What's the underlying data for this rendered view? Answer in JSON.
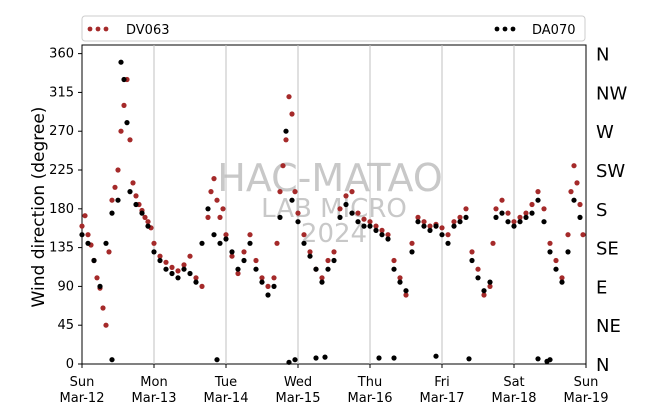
{
  "chart_data": {
    "type": "scatter",
    "ylabel": "Wind direction (degree)",
    "ylim": [
      0,
      370
    ],
    "yticks": [
      0,
      45,
      90,
      135,
      180,
      225,
      270,
      315,
      360
    ],
    "xlim": [
      "2024-03-12T00:00",
      "2024-03-19T00:00"
    ],
    "xtick_labels": [
      {
        "day": "Sun",
        "date": "Mar-12"
      },
      {
        "day": "Mon",
        "date": "Mar-13"
      },
      {
        "day": "Tue",
        "date": "Mar-14"
      },
      {
        "day": "Wed",
        "date": "Mar-15"
      },
      {
        "day": "Thu",
        "date": "Mar-16"
      },
      {
        "day": "Fri",
        "date": "Mar-17"
      },
      {
        "day": "Sat",
        "date": "Mar-18"
      },
      {
        "day": "Sun",
        "date": "Mar-19"
      }
    ],
    "right_axis_labels": [
      "N",
      "NE",
      "E",
      "SE",
      "S",
      "SW",
      "W",
      "NW",
      "N"
    ],
    "grid": "vertical-x",
    "legend": "top",
    "watermark": [
      "HAC-MATAO",
      "LAB MICRO",
      "2024"
    ],
    "series": [
      {
        "name": "DV063",
        "color": "#a52a2a",
        "points": [
          [
            "03-12 00:00",
            160
          ],
          [
            "03-12 01:00",
            172
          ],
          [
            "03-12 02:00",
            150
          ],
          [
            "03-12 03:00",
            138
          ],
          [
            "03-12 04:00",
            120
          ],
          [
            "03-12 05:00",
            100
          ],
          [
            "03-12 06:00",
            88
          ],
          [
            "03-12 07:00",
            65
          ],
          [
            "03-12 08:00",
            45
          ],
          [
            "03-12 09:00",
            130
          ],
          [
            "03-12 10:00",
            190
          ],
          [
            "03-12 11:00",
            205
          ],
          [
            "03-12 12:00",
            225
          ],
          [
            "03-12 13:00",
            270
          ],
          [
            "03-12 14:00",
            300
          ],
          [
            "03-12 15:00",
            330
          ],
          [
            "03-12 16:00",
            260
          ],
          [
            "03-12 17:00",
            210
          ],
          [
            "03-12 18:00",
            195
          ],
          [
            "03-12 19:00",
            185
          ],
          [
            "03-12 20:00",
            178
          ],
          [
            "03-12 21:00",
            170
          ],
          [
            "03-12 22:00",
            165
          ],
          [
            "03-12 23:00",
            158
          ],
          [
            "03-13 00:00",
            140
          ],
          [
            "03-13 02:00",
            125
          ],
          [
            "03-13 04:00",
            118
          ],
          [
            "03-13 06:00",
            112
          ],
          [
            "03-13 08:00",
            108
          ],
          [
            "03-13 10:00",
            115
          ],
          [
            "03-13 12:00",
            125
          ],
          [
            "03-13 14:00",
            100
          ],
          [
            "03-13 16:00",
            90
          ],
          [
            "03-13 18:00",
            170
          ],
          [
            "03-13 19:00",
            200
          ],
          [
            "03-13 20:00",
            215
          ],
          [
            "03-13 21:00",
            190
          ],
          [
            "03-13 22:00",
            170
          ],
          [
            "03-13 23:00",
            180
          ],
          [
            "03-14 00:00",
            150
          ],
          [
            "03-14 02:00",
            125
          ],
          [
            "03-14 04:00",
            105
          ],
          [
            "03-14 06:00",
            130
          ],
          [
            "03-14 08:00",
            150
          ],
          [
            "03-14 10:00",
            120
          ],
          [
            "03-14 12:00",
            100
          ],
          [
            "03-14 14:00",
            90
          ],
          [
            "03-14 16:00",
            100
          ],
          [
            "03-14 17:00",
            140
          ],
          [
            "03-14 18:00",
            200
          ],
          [
            "03-14 19:00",
            230
          ],
          [
            "03-14 20:00",
            260
          ],
          [
            "03-14 21:00",
            310
          ],
          [
            "03-14 22:00",
            290
          ],
          [
            "03-14 23:00",
            200
          ],
          [
            "03-15 00:00",
            175
          ],
          [
            "03-15 02:00",
            150
          ],
          [
            "03-15 04:00",
            130
          ],
          [
            "03-15 06:00",
            110
          ],
          [
            "03-15 08:00",
            100
          ],
          [
            "03-15 10:00",
            120
          ],
          [
            "03-15 12:00",
            130
          ],
          [
            "03-15 14:00",
            180
          ],
          [
            "03-15 16:00",
            195
          ],
          [
            "03-15 18:00",
            200
          ],
          [
            "03-15 20:00",
            175
          ],
          [
            "03-15 22:00",
            168
          ],
          [
            "03-16 00:00",
            165
          ],
          [
            "03-16 02:00",
            160
          ],
          [
            "03-16 04:00",
            155
          ],
          [
            "03-16 06:00",
            150
          ],
          [
            "03-16 08:00",
            120
          ],
          [
            "03-16 10:00",
            100
          ],
          [
            "03-16 12:00",
            80
          ],
          [
            "03-16 14:00",
            140
          ],
          [
            "03-16 16:00",
            170
          ],
          [
            "03-16 18:00",
            165
          ],
          [
            "03-16 20:00",
            160
          ],
          [
            "03-16 22:00",
            162
          ],
          [
            "03-17 00:00",
            158
          ],
          [
            "03-17 02:00",
            150
          ],
          [
            "03-17 04:00",
            165
          ],
          [
            "03-17 06:00",
            170
          ],
          [
            "03-17 08:00",
            180
          ],
          [
            "03-17 10:00",
            130
          ],
          [
            "03-17 12:00",
            110
          ],
          [
            "03-17 14:00",
            80
          ],
          [
            "03-17 16:00",
            90
          ],
          [
            "03-17 17:00",
            140
          ],
          [
            "03-17 18:00",
            180
          ],
          [
            "03-17 20:00",
            190
          ],
          [
            "03-17 22:00",
            175
          ],
          [
            "03-18 00:00",
            165
          ],
          [
            "03-18 02:00",
            170
          ],
          [
            "03-18 04:00",
            175
          ],
          [
            "03-18 06:00",
            185
          ],
          [
            "03-18 08:00",
            200
          ],
          [
            "03-18 10:00",
            180
          ],
          [
            "03-18 12:00",
            140
          ],
          [
            "03-18 14:00",
            120
          ],
          [
            "03-18 16:00",
            100
          ],
          [
            "03-18 18:00",
            150
          ],
          [
            "03-18 19:00",
            200
          ],
          [
            "03-18 20:00",
            230
          ],
          [
            "03-18 21:00",
            210
          ],
          [
            "03-18 22:00",
            185
          ],
          [
            "03-18 23:00",
            150
          ]
        ]
      },
      {
        "name": "DA070",
        "color": "#000000",
        "points": [
          [
            "03-12 00:00",
            150
          ],
          [
            "03-12 02:00",
            140
          ],
          [
            "03-12 04:00",
            120
          ],
          [
            "03-12 06:00",
            90
          ],
          [
            "03-12 08:00",
            140
          ],
          [
            "03-12 10:00",
            175
          ],
          [
            "03-12 12:00",
            190
          ],
          [
            "03-12 13:00",
            350
          ],
          [
            "03-12 14:00",
            330
          ],
          [
            "03-12 15:00",
            280
          ],
          [
            "03-12 16:00",
            200
          ],
          [
            "03-12 18:00",
            185
          ],
          [
            "03-12 20:00",
            175
          ],
          [
            "03-12 22:00",
            160
          ],
          [
            "03-13 00:00",
            130
          ],
          [
            "03-13 02:00",
            120
          ],
          [
            "03-13 04:00",
            110
          ],
          [
            "03-13 06:00",
            105
          ],
          [
            "03-13 08:00",
            100
          ],
          [
            "03-13 10:00",
            110
          ],
          [
            "03-13 12:00",
            105
          ],
          [
            "03-13 14:00",
            95
          ],
          [
            "03-13 16:00",
            140
          ],
          [
            "03-13 18:00",
            180
          ],
          [
            "03-13 20:00",
            150
          ],
          [
            "03-13 22:00",
            140
          ],
          [
            "03-14 00:00",
            145
          ],
          [
            "03-14 02:00",
            130
          ],
          [
            "03-14 04:00",
            110
          ],
          [
            "03-14 06:00",
            120
          ],
          [
            "03-14 08:00",
            140
          ],
          [
            "03-14 10:00",
            110
          ],
          [
            "03-14 12:00",
            95
          ],
          [
            "03-14 14:00",
            80
          ],
          [
            "03-14 16:00",
            90
          ],
          [
            "03-14 18:00",
            170
          ],
          [
            "03-14 20:00",
            270
          ],
          [
            "03-14 22:00",
            190
          ],
          [
            "03-15 00:00",
            165
          ],
          [
            "03-15 02:00",
            140
          ],
          [
            "03-15 04:00",
            125
          ],
          [
            "03-15 06:00",
            110
          ],
          [
            "03-15 08:00",
            95
          ],
          [
            "03-15 10:00",
            110
          ],
          [
            "03-15 12:00",
            120
          ],
          [
            "03-15 14:00",
            170
          ],
          [
            "03-15 16:00",
            185
          ],
          [
            "03-15 18:00",
            175
          ],
          [
            "03-15 20:00",
            165
          ],
          [
            "03-15 22:00",
            160
          ],
          [
            "03-16 00:00",
            160
          ],
          [
            "03-16 02:00",
            155
          ],
          [
            "03-16 04:00",
            150
          ],
          [
            "03-16 06:00",
            145
          ],
          [
            "03-16 08:00",
            110
          ],
          [
            "03-16 10:00",
            95
          ],
          [
            "03-16 12:00",
            85
          ],
          [
            "03-16 14:00",
            130
          ],
          [
            "03-16 16:00",
            165
          ],
          [
            "03-16 18:00",
            160
          ],
          [
            "03-16 20:00",
            155
          ],
          [
            "03-16 22:00",
            160
          ],
          [
            "03-17 00:00",
            150
          ],
          [
            "03-17 02:00",
            140
          ],
          [
            "03-17 04:00",
            160
          ],
          [
            "03-17 06:00",
            165
          ],
          [
            "03-17 08:00",
            170
          ],
          [
            "03-17 10:00",
            120
          ],
          [
            "03-17 12:00",
            100
          ],
          [
            "03-17 14:00",
            85
          ],
          [
            "03-17 16:00",
            95
          ],
          [
            "03-17 18:00",
            170
          ],
          [
            "03-17 20:00",
            175
          ],
          [
            "03-17 22:00",
            165
          ],
          [
            "03-18 00:00",
            160
          ],
          [
            "03-18 02:00",
            165
          ],
          [
            "03-18 04:00",
            170
          ],
          [
            "03-18 06:00",
            175
          ],
          [
            "03-18 08:00",
            190
          ],
          [
            "03-18 10:00",
            165
          ],
          [
            "03-18 12:00",
            130
          ],
          [
            "03-18 14:00",
            110
          ],
          [
            "03-18 16:00",
            95
          ],
          [
            "03-18 18:00",
            130
          ],
          [
            "03-18 20:00",
            190
          ],
          [
            "03-18 22:00",
            170
          ],
          [
            "03-13 21:00",
            5
          ],
          [
            "03-14 21:00",
            2
          ],
          [
            "03-14 23:00",
            5
          ],
          [
            "03-15 06:00",
            7
          ],
          [
            "03-15 09:00",
            8
          ],
          [
            "03-16 03:00",
            7
          ],
          [
            "03-16 08:00",
            7
          ],
          [
            "03-16 22:00",
            9
          ],
          [
            "03-17 09:00",
            6
          ],
          [
            "03-18 08:00",
            6
          ],
          [
            "03-18 11:00",
            3
          ],
          [
            "03-18 12:00",
            5
          ],
          [
            "03-12 10:00",
            5
          ]
        ]
      }
    ]
  }
}
